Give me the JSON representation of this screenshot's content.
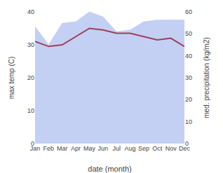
{
  "chart_data": {
    "type": "line",
    "categories": [
      "Jan",
      "Feb",
      "Mar",
      "Apr",
      "May",
      "Jun",
      "Jul",
      "Aug",
      "Sep",
      "Oct",
      "Nov",
      "Dec"
    ],
    "xlabel": "date (month)",
    "ylabel": "max temp (C)",
    "y2label": "med. precipitation (kg/m2)",
    "ylim": [
      0,
      40
    ],
    "yticks": [
      0,
      10,
      20,
      30,
      40
    ],
    "y2lim": [
      0,
      60
    ],
    "y2ticks": [
      0,
      10,
      20,
      30,
      40,
      50,
      60
    ],
    "grid": false,
    "series": [
      {
        "type": "area",
        "axis": "y2",
        "color": "#afc0f0",
        "values": [
          53.3,
          45.0,
          54.8,
          55.5,
          60.0,
          57.8,
          51.0,
          51.8,
          55.5,
          56.3,
          56.3,
          56.3
        ]
      },
      {
        "type": "line",
        "color": "#9e3f5a",
        "values": [
          31.0,
          29.5,
          30.0,
          32.5,
          35.0,
          34.5,
          33.5,
          33.5,
          32.5,
          31.5,
          32.0,
          29.5
        ]
      }
    ]
  }
}
